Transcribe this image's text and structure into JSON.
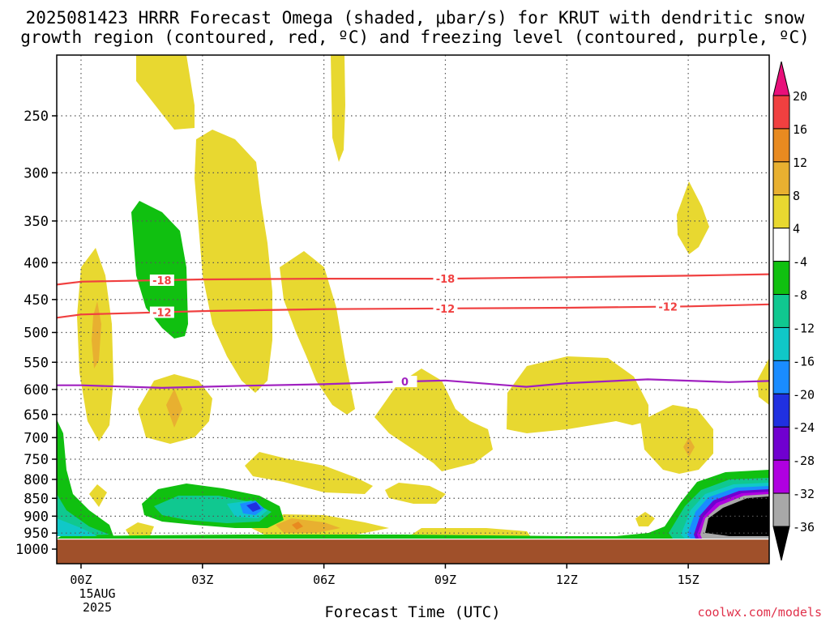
{
  "title": {
    "line1": "2025081423 HRRR Forecast Omega (shaded, μbar/s) for KRUT with dendritic snow",
    "line2": "growth region (contoured, red, ºC) and freezing level (contoured, purple, ºC)"
  },
  "credit": "coolwx.com/models",
  "chart_data": {
    "type": "heatmap",
    "title": "2025081423 HRRR Forecast Omega (shaded, μbar/s) for KRUT with dendritic snow growth region (contoured, red, ºC) and freezing level (contoured, purple, ºC)",
    "xlabel": "Forecast Time (UTC)",
    "ylabel": "",
    "x_ticks": [
      "00Z",
      "03Z",
      "06Z",
      "09Z",
      "12Z",
      "15Z"
    ],
    "x_tick_hours": [
      0,
      3,
      6,
      9,
      12,
      15
    ],
    "x_date_label": [
      "15AUG",
      "2025"
    ],
    "xlim_hours": [
      -0.6,
      17
    ],
    "y_ticks": [
      250,
      300,
      350,
      400,
      450,
      500,
      550,
      600,
      650,
      700,
      750,
      800,
      850,
      900,
      950,
      1000
    ],
    "ylim_hpa": [
      200,
      1025
    ],
    "y_log_pressure": true,
    "grid": true,
    "colorbar": {
      "levels": [
        -36,
        -32,
        -28,
        -24,
        -20,
        -16,
        -12,
        -8,
        -4,
        4,
        8,
        12,
        16,
        20
      ],
      "colors": [
        "#000000",
        "#a8a8a8",
        "#b000e0",
        "#7000d0",
        "#2030e0",
        "#1a8cff",
        "#10c8c8",
        "#10c890",
        "#10c010",
        "#ffffff",
        "#e8d830",
        "#e8b030",
        "#e88a20",
        "#f04040",
        "#e8107a"
      ]
    },
    "contours": [
      {
        "label": "-18",
        "color": "#f04040",
        "points": [
          [
            -0.6,
            429
          ],
          [
            0,
            425
          ],
          [
            3,
            422
          ],
          [
            6,
            421
          ],
          [
            9,
            421
          ],
          [
            12,
            419
          ],
          [
            15,
            417
          ],
          [
            17,
            415
          ]
        ]
      },
      {
        "label": "-12",
        "color": "#f04040",
        "points": [
          [
            -0.6,
            477
          ],
          [
            0,
            472
          ],
          [
            3,
            467
          ],
          [
            6,
            464
          ],
          [
            9,
            463
          ],
          [
            12,
            462
          ],
          [
            15,
            460
          ],
          [
            17,
            457
          ]
        ]
      },
      {
        "label": "0",
        "color": "#a020c0",
        "points": [
          [
            -0.6,
            592
          ],
          [
            0,
            592
          ],
          [
            2,
            597
          ],
          [
            4,
            593
          ],
          [
            6,
            590
          ],
          [
            8,
            585
          ],
          [
            9,
            583
          ],
          [
            11,
            595
          ],
          [
            12,
            588
          ],
          [
            14,
            581
          ],
          [
            16,
            586
          ],
          [
            17,
            584
          ]
        ]
      }
    ],
    "terrain_color": "#a0502a",
    "terrain_top_hpa": 970
  }
}
